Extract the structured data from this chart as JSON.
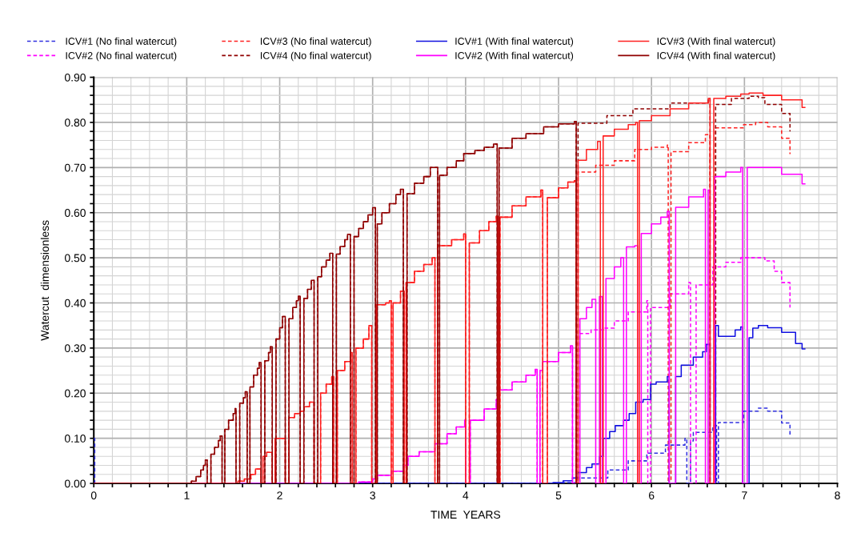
{
  "chart_data": {
    "type": "step",
    "xlabel": "TIME  YEARS",
    "ylabel": "Watercut  dimensionless",
    "xlim": [
      0,
      8
    ],
    "ylim": [
      0,
      0.9
    ],
    "xticks": [
      0,
      {
        "value": 0.2,
        "label": null
      },
      {
        "value": 0.4,
        "label": null
      },
      {
        "value": 0.6,
        "label": null
      },
      {
        "value": 0.8,
        "label": null
      },
      1,
      {
        "value": 1.2,
        "label": null
      },
      {
        "value": 1.4,
        "label": null
      },
      {
        "value": 1.6,
        "label": null
      },
      {
        "value": 1.8,
        "label": null
      },
      2,
      {
        "value": 2.2,
        "label": null
      },
      {
        "value": 2.4,
        "label": null
      },
      {
        "value": 2.6,
        "label": null
      },
      {
        "value": 2.8,
        "label": null
      },
      3,
      {
        "value": 3.2,
        "label": null
      },
      {
        "value": 3.4,
        "label": null
      },
      {
        "value": 3.6,
        "label": null
      },
      {
        "value": 3.8,
        "label": null
      },
      4,
      {
        "value": 4.2,
        "label": null
      },
      {
        "value": 4.4,
        "label": null
      },
      {
        "value": 4.6,
        "label": null
      },
      {
        "value": 4.8,
        "label": null
      },
      5,
      {
        "value": 5.2,
        "label": null
      },
      {
        "value": 5.4,
        "label": null
      },
      {
        "value": 5.6,
        "label": null
      },
      {
        "value": 5.8,
        "label": null
      },
      6,
      {
        "value": 6.2,
        "label": null
      },
      {
        "value": 6.4,
        "label": null
      },
      {
        "value": 6.6,
        "label": null
      },
      {
        "value": 6.8,
        "label": null
      },
      7,
      {
        "value": 7.2,
        "label": null
      },
      {
        "value": 7.4,
        "label": null
      },
      {
        "value": 7.6,
        "label": null
      },
      {
        "value": 7.8,
        "label": null
      },
      8
    ],
    "yticks": [
      {
        "value": 0,
        "label": "0.00"
      },
      {
        "value": 0.02,
        "label": null
      },
      {
        "value": 0.04,
        "label": null
      },
      {
        "value": 0.06,
        "label": null
      },
      {
        "value": 0.08,
        "label": null
      },
      {
        "value": 0.1,
        "label": "0.10"
      },
      {
        "value": 0.12,
        "label": null
      },
      {
        "value": 0.14,
        "label": null
      },
      {
        "value": 0.16,
        "label": null
      },
      {
        "value": 0.18,
        "label": null
      },
      {
        "value": 0.2,
        "label": "0.20"
      },
      {
        "value": 0.22,
        "label": null
      },
      {
        "value": 0.24,
        "label": null
      },
      {
        "value": 0.26,
        "label": null
      },
      {
        "value": 0.28,
        "label": null
      },
      {
        "value": 0.3,
        "label": "0.30"
      },
      {
        "value": 0.32,
        "label": null
      },
      {
        "value": 0.34,
        "label": null
      },
      {
        "value": 0.36,
        "label": null
      },
      {
        "value": 0.38,
        "label": null
      },
      {
        "value": 0.4,
        "label": "0.40"
      },
      {
        "value": 0.42,
        "label": null
      },
      {
        "value": 0.44,
        "label": null
      },
      {
        "value": 0.46,
        "label": null
      },
      {
        "value": 0.48,
        "label": null
      },
      {
        "value": 0.5,
        "label": "0.50"
      },
      {
        "value": 0.52,
        "label": null
      },
      {
        "value": 0.54,
        "label": null
      },
      {
        "value": 0.56,
        "label": null
      },
      {
        "value": 0.58,
        "label": null
      },
      {
        "value": 0.6,
        "label": "0.60"
      },
      {
        "value": 0.62,
        "label": null
      },
      {
        "value": 0.64,
        "label": null
      },
      {
        "value": 0.66,
        "label": null
      },
      {
        "value": 0.68,
        "label": null
      },
      {
        "value": 0.7,
        "label": "0.70"
      },
      {
        "value": 0.72,
        "label": null
      },
      {
        "value": 0.74,
        "label": null
      },
      {
        "value": 0.76,
        "label": null
      },
      {
        "value": 0.78,
        "label": null
      },
      {
        "value": 0.8,
        "label": "0.80"
      },
      {
        "value": 0.82,
        "label": null
      },
      {
        "value": 0.84,
        "label": null
      },
      {
        "value": 0.86,
        "label": null
      },
      {
        "value": 0.88,
        "label": null
      },
      {
        "value": 0.9,
        "label": "0.90"
      }
    ],
    "grid": true,
    "legend": "top",
    "marker": "none",
    "series": [
      {
        "name": "ICV#1 (No final watercut)",
        "color": "#3030e0",
        "line_style": "dashed",
        "x": [
          0,
          0.01,
          5.05,
          5.21,
          5.53,
          5.75,
          5.95,
          6.15,
          6.36,
          6.38,
          6.42,
          6.45,
          6.66,
          6.7,
          6.72,
          6.99,
          7.15,
          7.25,
          7.4,
          7.49
        ],
        "values": [
          0.1,
          0,
          0.002,
          0.012,
          0.03,
          0.05,
          0.067,
          0.085,
          0.1,
          0,
          0.094,
          0.113,
          0.128,
          0,
          0.135,
          0.16,
          0.167,
          0.16,
          0.134,
          0.107
        ]
      },
      {
        "name": "ICV#2 (No final watercut)",
        "color": "#ff00ff",
        "line_style": "dashed",
        "x": [
          0,
          2.85,
          3.0,
          3.05,
          3.2,
          3.33,
          3.38,
          3.5,
          3.67,
          3.8,
          3.9,
          3.99,
          4.0,
          4.05,
          4.2,
          4.33,
          4.36,
          4.5,
          4.65,
          4.75,
          4.77,
          4.8,
          4.83,
          5.0,
          5.13,
          5.15,
          5.21,
          5.35,
          5.49,
          5.6,
          5.75,
          5.95,
          5.96,
          5.99,
          6.2,
          6.4,
          6.42,
          6.48,
          6.66,
          6.8,
          6.96,
          7.14,
          7.22,
          7.32,
          7.4,
          7.49
        ],
        "values": [
          0,
          0.003,
          0.01,
          0.018,
          0.027,
          0.04,
          0.06,
          0.07,
          0.088,
          0.11,
          0.125,
          0.14,
          0,
          0.14,
          0.165,
          0.186,
          0.207,
          0.225,
          0.24,
          0.253,
          0,
          0.25,
          0.27,
          0.29,
          0.305,
          0,
          0.332,
          0.34,
          0.344,
          0.36,
          0.38,
          0.405,
          0,
          0.39,
          0.42,
          0.445,
          0,
          0.44,
          0.48,
          0.49,
          0.5,
          0.5,
          0.493,
          0.47,
          0.445,
          0.39
        ]
      },
      {
        "name": "ICV#3 (No final watercut)",
        "color": "#ff2020",
        "line_style": "dashed",
        "x": [
          0,
          1.55,
          1.62,
          1.69,
          1.74,
          1.8,
          1.82,
          1.86,
          1.92,
          1.95,
          2.06,
          2.1,
          2.16,
          2.22,
          2.26,
          2.32,
          2.37,
          2.44,
          2.5,
          2.56,
          2.58,
          2.62,
          2.7,
          2.76,
          2.78,
          2.82,
          2.9,
          2.96,
          2.99,
          3.04,
          3.14,
          3.18,
          3.2,
          3.22,
          3.3,
          3.34,
          3.36,
          3.45,
          3.55,
          3.64,
          3.67,
          3.7,
          3.85,
          3.98,
          4.0,
          4.04,
          4.15,
          4.25,
          4.33,
          4.35,
          4.37,
          4.5,
          4.65,
          4.81,
          4.83,
          4.88,
          5.0,
          5.1,
          5.17,
          5.19,
          5.21,
          5.4,
          5.6,
          5.82,
          6.0,
          6.17,
          6.18,
          6.21,
          6.4,
          6.58,
          6.63,
          6.69,
          6.99,
          7.12,
          7.25,
          7.4,
          7.49
        ],
        "values": [
          0,
          0.005,
          0.01,
          0.02,
          0.032,
          0,
          0.06,
          0.069,
          0,
          0.1,
          0,
          0.146,
          0.155,
          0.16,
          0.17,
          0.18,
          0,
          0.2,
          0.22,
          0.237,
          0,
          0.25,
          0.27,
          0.29,
          0,
          0.3,
          0.32,
          0.35,
          0,
          0.396,
          0.4,
          0.405,
          0,
          0.4,
          0.426,
          0,
          0.445,
          0.47,
          0.485,
          0.5,
          0,
          0.527,
          0.54,
          0.553,
          0,
          0.533,
          0.56,
          0.58,
          0.592,
          0,
          0.59,
          0.615,
          0.635,
          0.65,
          0,
          0.633,
          0.655,
          0.668,
          0.671,
          0,
          0.69,
          0.705,
          0.715,
          0.74,
          0.745,
          0.75,
          0,
          0.735,
          0.755,
          0.773,
          0,
          0.788,
          0.795,
          0.8,
          0.79,
          0.765,
          0.73
        ]
      },
      {
        "name": "ICV#4 (No final watercut)",
        "color": "#900000",
        "line_style": "dashed",
        "x": [
          0,
          1.05,
          1.1,
          1.15,
          1.18,
          1.2,
          1.22,
          1.26,
          1.3,
          1.34,
          1.36,
          1.38,
          1.41,
          1.45,
          1.5,
          1.52,
          1.53,
          1.57,
          1.61,
          1.63,
          1.65,
          1.68,
          1.72,
          1.76,
          1.78,
          1.8,
          1.84,
          1.88,
          1.9,
          1.92,
          1.96,
          2.0,
          2.03,
          2.06,
          2.1,
          2.14,
          2.18,
          2.2,
          2.22,
          2.26,
          2.3,
          2.34,
          2.37,
          2.41,
          2.45,
          2.5,
          2.54,
          2.57,
          2.61,
          2.65,
          2.7,
          2.73,
          2.76,
          2.8,
          2.85,
          2.9,
          2.95,
          3.0,
          3.03,
          3.05,
          3.1,
          3.18,
          3.25,
          3.3,
          3.33,
          3.37,
          3.45,
          3.55,
          3.62,
          3.7,
          3.72,
          3.8,
          3.9,
          3.98,
          4.1,
          4.2,
          4.3,
          4.34,
          4.36,
          4.5,
          4.65,
          4.84,
          5.0,
          5.17,
          5.19,
          5.21,
          5.52,
          5.8,
          6.2,
          6.61,
          6.63,
          6.69,
          6.86,
          7.05,
          7.15,
          7.22,
          7.4,
          7.49
        ],
        "values": [
          0,
          0.005,
          0.015,
          0.03,
          0.04,
          0.052,
          0,
          0.065,
          0.08,
          0.095,
          0.105,
          0,
          0.12,
          0.14,
          0.155,
          0.166,
          0,
          0.178,
          0.19,
          0.203,
          0,
          0.214,
          0.24,
          0.255,
          0.268,
          0,
          0.272,
          0.29,
          0.303,
          0,
          0.32,
          0.345,
          0.37,
          0,
          0.365,
          0.39,
          0.405,
          0.415,
          0,
          0.41,
          0.43,
          0.45,
          0,
          0.458,
          0.48,
          0.495,
          0.51,
          0,
          0.508,
          0.525,
          0.54,
          0.552,
          0,
          0.547,
          0.565,
          0.58,
          0.595,
          0.611,
          0,
          0.575,
          0.6,
          0.62,
          0.64,
          0.652,
          0,
          0.642,
          0.665,
          0.68,
          0.7,
          0,
          0.683,
          0.7,
          0.715,
          0.731,
          0.738,
          0.745,
          0.752,
          0,
          0.743,
          0.765,
          0.775,
          0.79,
          0.797,
          0.802,
          0,
          0.798,
          0.815,
          0.83,
          0.843,
          0.853,
          0,
          0.84,
          0.853,
          0.858,
          0.855,
          0.84,
          0.82,
          0.78
        ]
      },
      {
        "name": "ICV#1 (With final watercut)",
        "color": "#1010e0",
        "line_style": "solid",
        "x": [
          0,
          4.94,
          5.05,
          5.15,
          5.21,
          5.3,
          5.36,
          5.44,
          5.48,
          5.55,
          5.61,
          5.7,
          5.76,
          5.83,
          5.91,
          5.99,
          6.05,
          6.17,
          6.19,
          6.26,
          6.32,
          6.45,
          6.55,
          6.59,
          6.63,
          6.69,
          6.72,
          6.78,
          6.9,
          6.96,
          6.98,
          7.05,
          7.09,
          7.15,
          7.25,
          7.4,
          7.55,
          7.62,
          7.65
        ],
        "values": [
          0,
          0.002,
          0.006,
          0.012,
          0.024,
          0.035,
          0.043,
          0.06,
          0.1,
          0.115,
          0.128,
          0.14,
          0.155,
          0.18,
          0.186,
          0.22,
          0.225,
          0.237,
          0,
          0.237,
          0.262,
          0.28,
          0.292,
          0.308,
          0,
          0.35,
          0.326,
          0.326,
          0.34,
          0.347,
          0,
          0.323,
          0.344,
          0.35,
          0.345,
          0.335,
          0.31,
          0.298,
          0.298
        ]
      },
      {
        "name": "ICV#2 (With final watercut)",
        "color": "#ff00ff",
        "line_style": "solid",
        "x": [
          0,
          2.85,
          3.0,
          3.05,
          3.2,
          3.33,
          3.38,
          3.5,
          3.67,
          3.8,
          3.9,
          3.99,
          4.0,
          4.05,
          4.2,
          4.33,
          4.36,
          4.5,
          4.65,
          4.75,
          4.77,
          4.8,
          4.83,
          5.0,
          5.13,
          5.15,
          5.23,
          5.3,
          5.36,
          5.4,
          5.44,
          5.47,
          5.51,
          5.6,
          5.67,
          5.7,
          5.73,
          5.82,
          5.85,
          5.89,
          6.0,
          6.1,
          6.17,
          6.19,
          6.26,
          6.4,
          6.56,
          6.58,
          6.61,
          6.63,
          6.68,
          6.8,
          6.96,
          6.98,
          7.03,
          7.19,
          7.4,
          7.62,
          7.65
        ],
        "values": [
          0,
          0.003,
          0.01,
          0.018,
          0.027,
          0.04,
          0.06,
          0.07,
          0.088,
          0.11,
          0.125,
          0.14,
          0,
          0.14,
          0.165,
          0.186,
          0.207,
          0.225,
          0.24,
          0.253,
          0,
          0.25,
          0.27,
          0.29,
          0.305,
          0,
          0.365,
          0.39,
          0.408,
          0,
          0.414,
          0,
          0.454,
          0.48,
          0.5,
          0,
          0.524,
          0.527,
          0,
          0.554,
          0.575,
          0.59,
          0.603,
          0,
          0.612,
          0.635,
          0.652,
          0,
          0.65,
          0,
          0.68,
          0.69,
          0.7,
          0,
          0.7,
          0.7,
          0.685,
          0.664,
          0.664
        ]
      },
      {
        "name": "ICV#3 (With final watercut)",
        "color": "#ff2020",
        "line_style": "solid",
        "x": [
          0,
          1.55,
          1.62,
          1.69,
          1.74,
          1.8,
          1.82,
          1.86,
          1.92,
          1.95,
          2.06,
          2.1,
          2.16,
          2.22,
          2.26,
          2.32,
          2.37,
          2.44,
          2.5,
          2.56,
          2.58,
          2.62,
          2.7,
          2.76,
          2.78,
          2.82,
          2.9,
          2.96,
          2.99,
          3.04,
          3.14,
          3.18,
          3.2,
          3.22,
          3.3,
          3.34,
          3.36,
          3.45,
          3.55,
          3.64,
          3.67,
          3.7,
          3.85,
          3.98,
          4.0,
          4.04,
          4.15,
          4.25,
          4.33,
          4.35,
          4.37,
          4.5,
          4.65,
          4.81,
          4.83,
          4.88,
          5.0,
          5.1,
          5.17,
          5.19,
          5.21,
          5.3,
          5.42,
          5.45,
          5.48,
          5.6,
          5.75,
          5.83,
          5.85,
          5.87,
          6.0,
          6.2,
          6.4,
          6.61,
          6.63,
          6.67,
          6.8,
          6.96,
          7.05,
          7.2,
          7.4,
          7.62,
          7.65
        ],
        "values": [
          0,
          0.005,
          0.01,
          0.02,
          0.032,
          0,
          0.06,
          0.069,
          0,
          0.1,
          0,
          0.146,
          0.155,
          0.16,
          0.17,
          0.18,
          0,
          0.2,
          0.22,
          0.237,
          0,
          0.25,
          0.27,
          0.29,
          0,
          0.3,
          0.32,
          0.35,
          0,
          0.396,
          0.4,
          0.405,
          0,
          0.4,
          0.426,
          0,
          0.445,
          0.47,
          0.485,
          0.5,
          0,
          0.527,
          0.54,
          0.553,
          0,
          0.533,
          0.56,
          0.58,
          0.592,
          0,
          0.59,
          0.615,
          0.635,
          0.65,
          0,
          0.633,
          0.655,
          0.668,
          0.671,
          0,
          0.716,
          0.74,
          0.758,
          0,
          0.77,
          0.785,
          0.795,
          0.8,
          0,
          0.804,
          0.815,
          0.83,
          0.843,
          0.853,
          0,
          0.853,
          0.858,
          0.863,
          0.865,
          0.86,
          0.85,
          0.833,
          0.833
        ]
      },
      {
        "name": "ICV#4 (With final watercut)",
        "color": "#900000",
        "line_style": "solid",
        "x": [
          0,
          1.05,
          1.1,
          1.15,
          1.18,
          1.2,
          1.22,
          1.26,
          1.3,
          1.34,
          1.36,
          1.38,
          1.41,
          1.45,
          1.5,
          1.52,
          1.53,
          1.57,
          1.61,
          1.63,
          1.65,
          1.68,
          1.72,
          1.76,
          1.78,
          1.8,
          1.84,
          1.88,
          1.9,
          1.92,
          1.96,
          2.0,
          2.03,
          2.06,
          2.1,
          2.14,
          2.18,
          2.2,
          2.22,
          2.26,
          2.3,
          2.34,
          2.37,
          2.41,
          2.45,
          2.5,
          2.54,
          2.57,
          2.61,
          2.65,
          2.7,
          2.73,
          2.76,
          2.8,
          2.85,
          2.9,
          2.95,
          3.0,
          3.03,
          3.05,
          3.1,
          3.18,
          3.25,
          3.3,
          3.33,
          3.37,
          3.45,
          3.55,
          3.62,
          3.7,
          3.72,
          3.8,
          3.9,
          3.98,
          4.1,
          4.2,
          4.3,
          4.34,
          4.36,
          4.5,
          4.65,
          4.84,
          5.0,
          5.17,
          5.19,
          5.22
        ],
        "values": [
          0,
          0.005,
          0.015,
          0.03,
          0.04,
          0.052,
          0,
          0.065,
          0.08,
          0.095,
          0.105,
          0,
          0.12,
          0.14,
          0.155,
          0.166,
          0,
          0.178,
          0.19,
          0.203,
          0,
          0.214,
          0.24,
          0.255,
          0.268,
          0,
          0.272,
          0.29,
          0.303,
          0,
          0.32,
          0.345,
          0.37,
          0,
          0.365,
          0.39,
          0.405,
          0.415,
          0,
          0.41,
          0.43,
          0.45,
          0,
          0.458,
          0.48,
          0.495,
          0.51,
          0,
          0.508,
          0.525,
          0.54,
          0.552,
          0,
          0.547,
          0.565,
          0.58,
          0.595,
          0.611,
          0,
          0.575,
          0.6,
          0.62,
          0.64,
          0.652,
          0,
          0.642,
          0.665,
          0.68,
          0.7,
          0,
          0.683,
          0.7,
          0.715,
          0.731,
          0.738,
          0.745,
          0.752,
          0,
          0.743,
          0.765,
          0.775,
          0.79,
          0.797,
          0.802,
          0,
          0
        ]
      }
    ]
  }
}
